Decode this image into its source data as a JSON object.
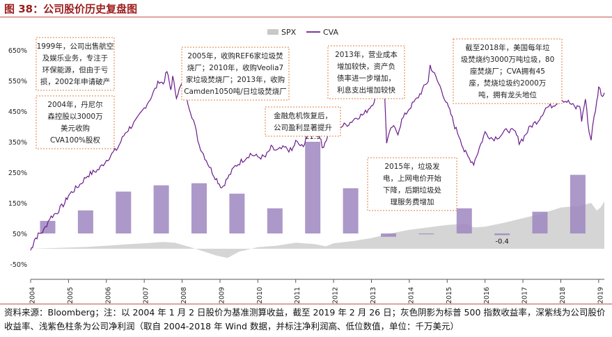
{
  "figure_title": "图 38：公司股价历史复盘图",
  "source_note": "资料来源：Bloomberg；注：以 2004 年 1 月 2 日股价为基准测算收益，截至 2019 年 2 月 26 日；灰色阴影为标普 500 指数收益率，深紫线为公司股价收益率、浅紫色柱条为公司净利润（取自 2004-2018 年 Wind 数据，并标注净利润高、低位数值，单位：千万美元）",
  "colors": {
    "cva": "#6a1b8a",
    "spx": "#d0d0d0",
    "bars": "#9e86bf",
    "box_border": "#e07b39",
    "title": "#9b1c1c"
  },
  "chart_data": {
    "type": "line",
    "legend": [
      "SPX",
      "CVA"
    ],
    "legend_position": "top-center",
    "y_ticks": [
      "650%",
      "550%",
      "450%",
      "350%",
      "250%",
      "150%",
      "50%",
      "-50%"
    ],
    "ylim": [
      -50,
      650
    ],
    "x_ticks": [
      "2004",
      "2005",
      "2006",
      "2007",
      "2008",
      "2009",
      "2010",
      "2011",
      "2012",
      "2013",
      "2014",
      "2015",
      "2016",
      "2017",
      "2018",
      "2019"
    ],
    "xlim": [
      2004,
      2019.15
    ],
    "series": [
      {
        "name": "CVA",
        "x": [
          2004.0,
          2004.05,
          2004.1,
          2004.2,
          2004.35,
          2004.5,
          2004.7,
          2004.9,
          2005.0,
          2005.3,
          2005.5,
          2005.8,
          2006.0,
          2006.3,
          2006.5,
          2006.8,
          2007.0,
          2007.2,
          2007.4,
          2007.5,
          2007.6,
          2007.7,
          2007.75,
          2007.85,
          2008.0,
          2008.15,
          2008.3,
          2008.45,
          2008.6,
          2008.8,
          2008.95,
          2009.05,
          2009.2,
          2009.4,
          2009.6,
          2009.8,
          2010.0,
          2010.2,
          2010.35,
          2010.5,
          2010.7,
          2010.9,
          2011.0,
          2011.2,
          2011.35,
          2011.5,
          2011.6,
          2011.7,
          2011.85,
          2012.0,
          2012.2,
          2012.4,
          2012.6,
          2012.8,
          2013.0,
          2013.1,
          2013.2,
          2013.35,
          2013.4,
          2013.55,
          2013.7,
          2013.8,
          2014.0,
          2014.2,
          2014.35,
          2014.5,
          2014.55,
          2014.7,
          2014.85,
          2015.0,
          2015.1,
          2015.2,
          2015.35,
          2015.45,
          2015.55,
          2015.7,
          2015.85,
          2016.0,
          2016.2,
          2016.4,
          2016.6,
          2016.8,
          2016.9,
          2017.0,
          2017.2,
          2017.4,
          2017.6,
          2017.8,
          2018.0,
          2018.2,
          2018.4,
          2018.5,
          2018.55,
          2018.65,
          2018.75,
          2018.8,
          2018.88,
          2018.95,
          2019.0,
          2019.1,
          2019.15
        ],
        "values": [
          -5,
          10,
          30,
          45,
          60,
          100,
          120,
          150,
          175,
          210,
          240,
          260,
          290,
          330,
          380,
          420,
          460,
          500,
          550,
          540,
          580,
          520,
          560,
          500,
          540,
          480,
          420,
          340,
          300,
          250,
          220,
          200,
          230,
          270,
          290,
          310,
          300,
          300,
          330,
          320,
          330,
          320,
          350,
          330,
          410,
          380,
          390,
          330,
          370,
          390,
          400,
          410,
          430,
          440,
          470,
          490,
          510,
          500,
          350,
          400,
          380,
          420,
          460,
          490,
          520,
          550,
          600,
          560,
          520,
          470,
          440,
          400,
          360,
          320,
          300,
          280,
          330,
          380,
          360,
          370,
          390,
          380,
          350,
          360,
          400,
          420,
          460,
          470,
          490,
          480,
          460,
          470,
          420,
          490,
          380,
          360,
          430,
          480,
          530,
          500,
          510
        ]
      },
      {
        "name": "SPX",
        "x": [
          2004.0,
          2004.5,
          2005.0,
          2005.5,
          2006.0,
          2006.5,
          2007.0,
          2007.5,
          2007.8,
          2008.2,
          2008.6,
          2008.9,
          2009.2,
          2009.5,
          2010.0,
          2010.5,
          2011.0,
          2011.5,
          2011.8,
          2012.0,
          2012.5,
          2013.0,
          2013.5,
          2014.0,
          2014.5,
          2015.0,
          2015.5,
          2015.7,
          2016.0,
          2016.5,
          2017.0,
          2017.5,
          2018.0,
          2018.5,
          2018.8,
          2018.95,
          2019.05,
          2019.15
        ],
        "values": [
          0,
          2,
          4,
          6,
          10,
          14,
          18,
          22,
          20,
          6,
          -10,
          -22,
          -30,
          -10,
          5,
          10,
          20,
          15,
          8,
          18,
          25,
          35,
          50,
          62,
          70,
          78,
          82,
          70,
          72,
          85,
          100,
          115,
          135,
          140,
          150,
          125,
          135,
          155
        ]
      }
    ],
    "bars": {
      "name": "公司净利润（千万美元）",
      "years": [
        2004,
        2005,
        2006,
        2007,
        2008,
        2009,
        2010,
        2011,
        2012,
        2013,
        2014,
        2015,
        2016,
        2017,
        2018
      ],
      "values": [
        3.0,
        5.5,
        10.0,
        11.5,
        12.0,
        9.5,
        6.0,
        21.9,
        10.8,
        -0.8,
        -0.2,
        6.0,
        -0.4,
        5.2,
        14.0
      ],
      "data_labels": [
        {
          "year": 2011,
          "text": "21.9"
        },
        {
          "year": 2016,
          "text": "-0.4"
        }
      ]
    },
    "annotations": [
      {
        "year": 2004.3,
        "text": [
          "1999年，公司出售航空",
          "及娱乐业务，专注于",
          "环保能源，但由于亏",
          "损，2002年申请破产"
        ]
      },
      {
        "year": 2004.3,
        "text": [
          "2004年，丹尼尔",
          "森控股以3000万",
          "美元收购",
          "CVA100%股权"
        ]
      },
      {
        "year": 2008.0,
        "text": [
          "2005年，收购REF6家垃圾焚",
          "烧厂；2010年，收购Veolia7",
          "家垃圾焚烧厂；2013年，收购",
          "Camden1050吨/日垃圾焚烧厂"
        ]
      },
      {
        "year": 2011.6,
        "text": [
          "金融危机恢复后，",
          "公司盈利显著提升"
        ]
      },
      {
        "year": 2013.5,
        "text": [
          "2013年，营业成本",
          "增加较快，资产负",
          "债率进一步增加，",
          "利息支出增加较快"
        ]
      },
      {
        "year": 2015.4,
        "text": [
          "2015年，垃圾发",
          "电，上网电价开始",
          "下降，后期垃圾处",
          "理服务费增加"
        ]
      },
      {
        "year": 2017.0,
        "text": [
          "截至2018年，美国每年垃",
          "圾焚烧约3000万吨垃圾，80",
          "座焚烧厂；CVA拥有45",
          "座，焚烧垃圾约2000万",
          "吨，拥有龙头地位"
        ]
      }
    ]
  }
}
